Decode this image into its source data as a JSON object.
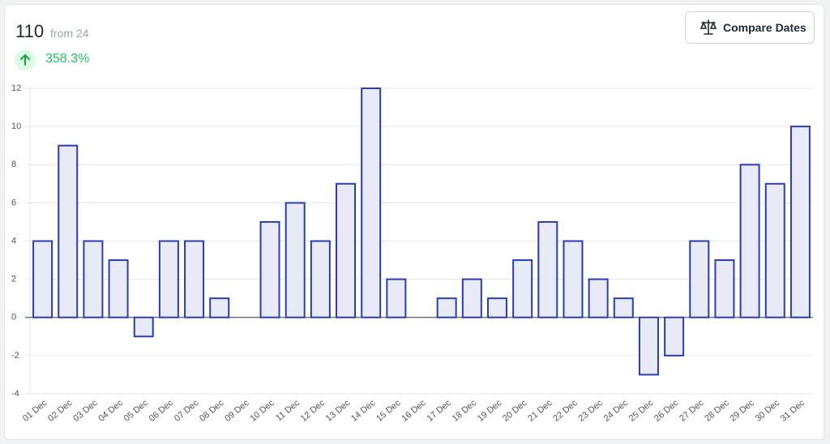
{
  "header": {
    "value": "110",
    "from": "from 24",
    "change": "358.3%"
  },
  "button": "Compare Dates",
  "chart_data": {
    "type": "bar",
    "categories": [
      "01 Dec",
      "02 Dec",
      "03 Dec",
      "04 Dec",
      "05 Dec",
      "06 Dec",
      "07 Dec",
      "08 Dec",
      "09 Dec",
      "10 Dec",
      "11 Dec",
      "12 Dec",
      "13 Dec",
      "14 Dec",
      "15 Dec",
      "16 Dec",
      "17 Dec",
      "18 Dec",
      "19 Dec",
      "20 Dec",
      "21 Dec",
      "22 Dec",
      "23 Dec",
      "24 Dec",
      "25 Dec",
      "26 Dec",
      "27 Dec",
      "28 Dec",
      "29 Dec",
      "30 Dec",
      "31 Dec"
    ],
    "values": [
      4,
      9,
      4,
      3,
      -1,
      4,
      4,
      1,
      0,
      5,
      6,
      4,
      7,
      12,
      2,
      0,
      1,
      2,
      1,
      3,
      5,
      4,
      2,
      1,
      -3,
      -2,
      4,
      3,
      8,
      7,
      10
    ],
    "color": "#e8eaf8",
    "border_color": "#2a3eb1",
    "ylim": [
      -4,
      12
    ],
    "yticks": [
      -4,
      -2,
      0,
      2,
      4,
      6,
      8,
      10,
      12
    ],
    "grid": true
  }
}
